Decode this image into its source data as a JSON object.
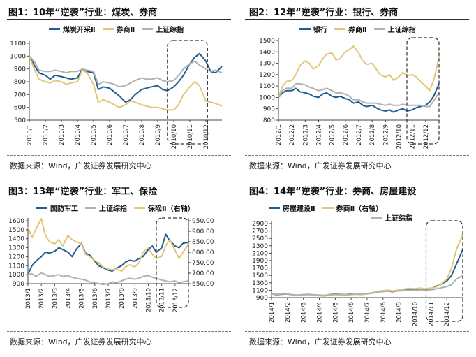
{
  "colors": {
    "blue": "#215d8f",
    "gold": "#e2c779",
    "gray": "#b2b2b2",
    "axis": "#444444",
    "dash": "#333333"
  },
  "source_text": "数据来源：Wind，广发证券发展研究中心",
  "chart_data": [
    {
      "type": "line",
      "title": "图1：10年“逆袭”行业：煤炭、券商",
      "categories": [
        "2010/1",
        "2010/2",
        "2010/3",
        "2010/4",
        "2010/5",
        "2010/6",
        "2010/7",
        "2010/8",
        "2010/9",
        "2010/10",
        "2010/11",
        "2010/12"
      ],
      "x": [
        0,
        0.3,
        0.6,
        1,
        1.3,
        1.6,
        2,
        2.3,
        2.6,
        3,
        3.3,
        3.6,
        4,
        4.3,
        4.6,
        5,
        5.3,
        5.6,
        6,
        6.3,
        6.6,
        7,
        7.3,
        7.6,
        8,
        8.3,
        8.6,
        9,
        9.3,
        9.6,
        10,
        10.3,
        10.6,
        11,
        11.3,
        11.6,
        12
      ],
      "ylim": [
        500,
        1100
      ],
      "yticks": [
        500,
        600,
        700,
        800,
        900,
        1000,
        1100
      ],
      "series": [
        {
          "name": "煤炭开采Ⅱ",
          "color": "#215d8f",
          "values": [
            1000,
            930,
            870,
            850,
            820,
            850,
            840,
            830,
            820,
            830,
            900,
            880,
            870,
            740,
            760,
            750,
            720,
            690,
            640,
            660,
            700,
            740,
            750,
            760,
            770,
            740,
            730,
            760,
            800,
            850,
            940,
            990,
            1020,
            960,
            880,
            870,
            920
          ]
        },
        {
          "name": "券商Ⅱ",
          "color": "#e2c779",
          "values": [
            1000,
            900,
            820,
            800,
            790,
            810,
            800,
            780,
            790,
            800,
            890,
            870,
            780,
            640,
            660,
            640,
            620,
            600,
            620,
            650,
            640,
            620,
            610,
            600,
            600,
            590,
            580,
            580,
            620,
            700,
            760,
            800,
            770,
            650,
            640,
            630,
            610
          ]
        },
        {
          "name": "上证综指",
          "color": "#b2b2b2",
          "values": [
            1000,
            960,
            890,
            880,
            880,
            890,
            880,
            870,
            880,
            880,
            900,
            890,
            880,
            780,
            800,
            790,
            780,
            760,
            770,
            790,
            810,
            830,
            820,
            820,
            830,
            810,
            800,
            810,
            850,
            900,
            940,
            960,
            930,
            900,
            880,
            890,
            870
          ]
        }
      ],
      "highlight": [
        8.6,
        11.1
      ]
    },
    {
      "type": "line",
      "title": "图2：12年“逆袭”行业：银行、券商",
      "categories": [
        "2012/1",
        "2012/2",
        "2012/3",
        "2012/4",
        "2012/5",
        "2012/6",
        "2012/7",
        "2012/8",
        "2012/9",
        "2012/10",
        "2012/11",
        "2012/12"
      ],
      "x": [
        0,
        0.3,
        0.6,
        1,
        1.3,
        1.6,
        2,
        2.3,
        2.6,
        3,
        3.3,
        3.6,
        4,
        4.3,
        4.6,
        5,
        5.3,
        5.6,
        6,
        6.3,
        6.6,
        7,
        7.3,
        7.6,
        8,
        8.3,
        8.6,
        9,
        9.3,
        9.6,
        10,
        10.3,
        10.6,
        11,
        11.3,
        11.6,
        12
      ],
      "ylim": [
        800,
        1500
      ],
      "yticks": [
        800,
        900,
        1000,
        1100,
        1200,
        1300,
        1400,
        1500
      ],
      "series": [
        {
          "name": "银行",
          "color": "#215d8f",
          "values": [
            1000,
            1040,
            1060,
            1060,
            1080,
            1050,
            1040,
            1030,
            1010,
            1000,
            1030,
            1040,
            1010,
            1000,
            1010,
            990,
            980,
            950,
            960,
            930,
            920,
            930,
            910,
            890,
            880,
            890,
            870,
            890,
            900,
            880,
            890,
            910,
            920,
            930,
            960,
            1010,
            1120
          ]
        },
        {
          "name": "券商Ⅱ",
          "color": "#e2c779",
          "values": [
            1000,
            1100,
            1140,
            1150,
            1200,
            1280,
            1320,
            1300,
            1250,
            1280,
            1340,
            1380,
            1390,
            1330,
            1340,
            1400,
            1420,
            1450,
            1390,
            1320,
            1290,
            1300,
            1250,
            1200,
            1180,
            1200,
            1150,
            1180,
            1220,
            1190,
            1200,
            1180,
            1140,
            1100,
            1060,
            1150,
            1350
          ]
        },
        {
          "name": "上证综指",
          "color": "#b2b2b2",
          "values": [
            1000,
            1060,
            1080,
            1080,
            1120,
            1120,
            1110,
            1090,
            1080,
            1060,
            1070,
            1080,
            1060,
            1040,
            1040,
            1030,
            1010,
            980,
            980,
            960,
            950,
            950,
            950,
            940,
            930,
            940,
            930,
            930,
            940,
            930,
            930,
            930,
            930,
            920,
            920,
            970,
            1040
          ]
        }
      ],
      "highlight": [
        9.6,
        12.0
      ]
    },
    {
      "type": "line",
      "title": "图3：13年“逆袭”行业：军工、保险",
      "categories": [
        "2013/1",
        "2013/2",
        "2013/3",
        "2013/4",
        "2013/5",
        "2013/6",
        "2013/7",
        "2013/8",
        "2013/9",
        "2013/10",
        "2013/11",
        "2013/12"
      ],
      "x": [
        0,
        0.3,
        0.6,
        1,
        1.3,
        1.6,
        2,
        2.3,
        2.6,
        3,
        3.3,
        3.6,
        4,
        4.3,
        4.6,
        5,
        5.3,
        5.6,
        6,
        6.3,
        6.6,
        7,
        7.3,
        7.6,
        8,
        8.3,
        8.6,
        9,
        9.3,
        9.6,
        10,
        10.3,
        10.6,
        11,
        11.3,
        11.6,
        12
      ],
      "ylim": [
        900,
        1600
      ],
      "yticks": [
        900,
        1000,
        1100,
        1200,
        1300,
        1400,
        1500,
        1600
      ],
      "y2lim": [
        650,
        950
      ],
      "y2ticks": [
        "650.00",
        "700.00",
        "750.00",
        "800.00",
        "850.00",
        "900.00",
        "950.00"
      ],
      "series": [
        {
          "name": "国防军工",
          "color": "#215d8f",
          "axis": "left",
          "values": [
            1000,
            1100,
            1150,
            1200,
            1250,
            1240,
            1260,
            1300,
            1280,
            1250,
            1200,
            1280,
            1350,
            1240,
            1220,
            1150,
            1100,
            1080,
            1050,
            1040,
            1070,
            1100,
            1140,
            1160,
            1150,
            1180,
            1200,
            1280,
            1320,
            1250,
            1300,
            1450,
            1380,
            1320,
            1300,
            1350,
            1360
          ]
        },
        {
          "name": "上证综指",
          "color": "#b2b2b2",
          "axis": "left",
          "values": [
            1000,
            1010,
            980,
            1020,
            1000,
            980,
            990,
            1000,
            980,
            990,
            970,
            960,
            950,
            940,
            920,
            910,
            900,
            890,
            900,
            920,
            910,
            930,
            950,
            960,
            950,
            960,
            980,
            990,
            970,
            960,
            940,
            930,
            920,
            930,
            910,
            920,
            930
          ]
        },
        {
          "name": "保险Ⅱ（右轴）",
          "color": "#e2c779",
          "axis": "right",
          "values": [
            920,
            870,
            910,
            960,
            880,
            850,
            840,
            860,
            830,
            880,
            860,
            850,
            840,
            790,
            780,
            760,
            750,
            730,
            720,
            715,
            720,
            710,
            730,
            740,
            730,
            750,
            800,
            820,
            790,
            770,
            780,
            830,
            860,
            810,
            770,
            800,
            840
          ]
        }
      ],
      "highlight": [
        9.6,
        12.0
      ]
    },
    {
      "type": "line",
      "title": "图4：14年“逆袭”行业：券商、房屋建设",
      "categories": [
        "2014/1",
        "2014/2",
        "2014/3",
        "2014/4",
        "2014/5",
        "2014/6",
        "2014/7",
        "2014/8",
        "2014/9",
        "2014/10",
        "2014/11",
        "2014/12"
      ],
      "x": [
        0,
        0.3,
        0.6,
        1,
        1.3,
        1.6,
        2,
        2.3,
        2.6,
        3,
        3.3,
        3.6,
        4,
        4.3,
        4.6,
        5,
        5.3,
        5.6,
        6,
        6.3,
        6.6,
        7,
        7.3,
        7.6,
        8,
        8.3,
        8.6,
        9,
        9.3,
        9.6,
        10,
        10.3,
        10.6,
        11,
        11.3,
        11.6,
        12
      ],
      "ylim": [
        900,
        2900
      ],
      "yticks": [
        900,
        1100,
        1300,
        1500,
        1700,
        1900,
        2100,
        2300,
        2500,
        2700,
        2900
      ],
      "series": [
        {
          "name": "房屋建设Ⅱ",
          "color": "#215d8f",
          "values": [
            1000,
            980,
            990,
            1000,
            970,
            960,
            980,
            990,
            970,
            960,
            950,
            980,
            1000,
            990,
            980,
            1000,
            1010,
            1000,
            1000,
            1020,
            1050,
            1070,
            1080,
            1060,
            1090,
            1100,
            1110,
            1100,
            1120,
            1110,
            1140,
            1200,
            1250,
            1350,
            1500,
            1800,
            2200
          ]
        },
        {
          "name": "券商Ⅱ（右轴）",
          "color": "#e2c779",
          "values": [
            1000,
            990,
            1000,
            1010,
            960,
            950,
            970,
            980,
            960,
            950,
            940,
            960,
            980,
            970,
            960,
            980,
            990,
            980,
            1000,
            1020,
            1060,
            1090,
            1100,
            1080,
            1110,
            1130,
            1150,
            1140,
            1160,
            1140,
            1160,
            1180,
            1250,
            1400,
            1700,
            2200,
            2600
          ]
        },
        {
          "name": "上证综指",
          "color": "#b2b2b2",
          "values": [
            1000,
            990,
            1000,
            1000,
            980,
            970,
            980,
            990,
            980,
            970,
            960,
            980,
            990,
            990,
            980,
            990,
            1000,
            1000,
            1010,
            1030,
            1050,
            1060,
            1080,
            1070,
            1080,
            1090,
            1100,
            1090,
            1110,
            1100,
            1110,
            1130,
            1160,
            1200,
            1250,
            1400,
            1500
          ]
        }
      ],
      "highlight": [
        9.7,
        12.0
      ]
    }
  ]
}
